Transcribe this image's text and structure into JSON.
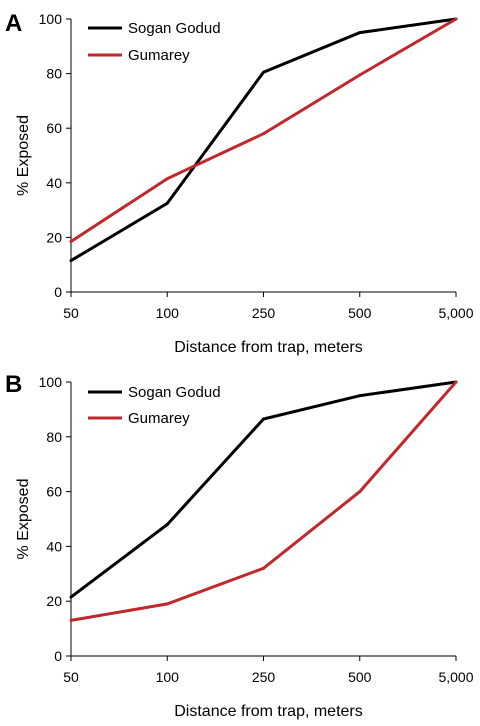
{
  "colors": {
    "sogan": "#000000",
    "gumarey": "#c0282d",
    "axis": "#000000"
  },
  "chart_data": [
    {
      "type": "line",
      "panel_label": "A",
      "xlabel": "Distance from trap, meters",
      "ylabel": "% Exposed",
      "categories": [
        "50",
        "100",
        "250",
        "500",
        "5,000"
      ],
      "ylim": [
        0,
        100
      ],
      "yticks": [
        "0",
        "20",
        "40",
        "60",
        "80",
        "100"
      ],
      "legend_position": "top-left",
      "grid": false,
      "series": [
        {
          "name": "Sogan Godud",
          "color": "#000000",
          "values": [
            11.5,
            32.5,
            80.5,
            95,
            100
          ]
        },
        {
          "name": "Gumarey",
          "color": "#c0282d",
          "values": [
            18.5,
            41.5,
            58,
            79.5,
            100
          ]
        }
      ]
    },
    {
      "type": "line",
      "panel_label": "B",
      "xlabel": "Distance from trap, meters",
      "ylabel": "% Exposed",
      "categories": [
        "50",
        "100",
        "250",
        "500",
        "5,000"
      ],
      "ylim": [
        0,
        100
      ],
      "yticks": [
        "0",
        "20",
        "40",
        "60",
        "80",
        "100"
      ],
      "legend_position": "top-left",
      "grid": false,
      "series": [
        {
          "name": "Sogan Godud",
          "color": "#000000",
          "values": [
            21.5,
            48,
            86.5,
            95,
            100
          ]
        },
        {
          "name": "Gumarey",
          "color": "#c0282d",
          "values": [
            13,
            19,
            32,
            60,
            100
          ]
        }
      ]
    }
  ]
}
